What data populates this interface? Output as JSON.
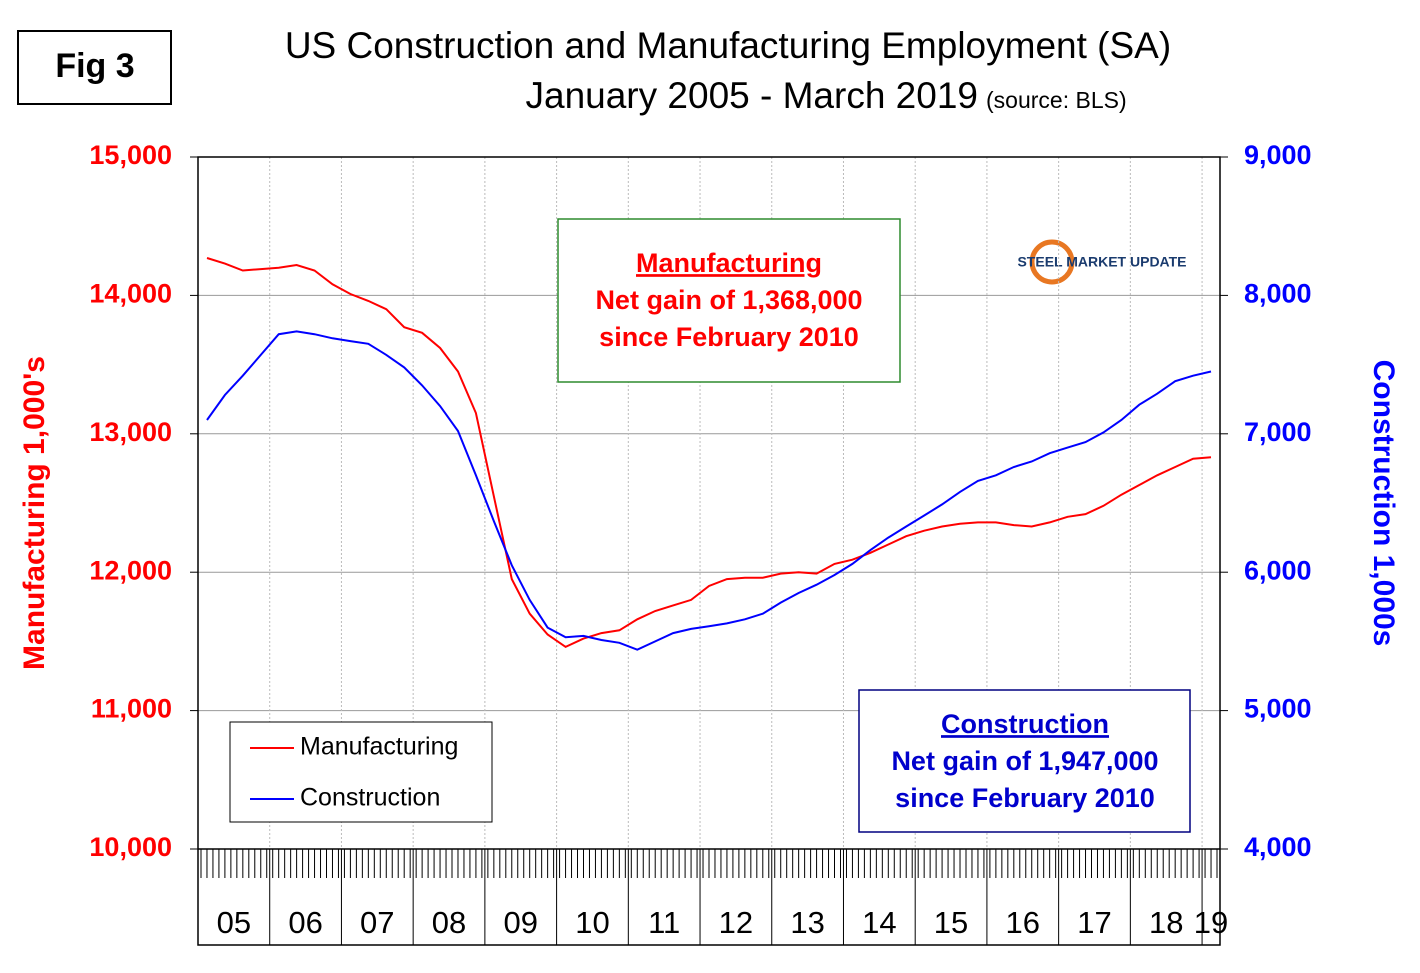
{
  "fig_label": "Fig 3",
  "chart_data": {
    "type": "line",
    "title": "US Construction and Manufacturing Employment (SA)",
    "subtitle": "January 2005 - March 2019",
    "source": "(source: BLS)",
    "logo": "STEEL MARKET UPDATE",
    "y_label": "Manufacturing  1,000's",
    "y2_label": "Construction 1,000s",
    "categories": [
      "05",
      null,
      null,
      null,
      "06",
      null,
      null,
      null,
      "07",
      null,
      null,
      null,
      "08",
      null,
      null,
      null,
      "09",
      null,
      null,
      null,
      "10",
      null,
      null,
      null,
      "11",
      null,
      null,
      null,
      "12",
      null,
      null,
      null,
      "13",
      null,
      null,
      null,
      "14",
      null,
      null,
      null,
      "15",
      null,
      null,
      null,
      "16",
      null,
      null,
      null,
      "17",
      null,
      null,
      null,
      "18",
      null,
      null,
      null,
      "19"
    ],
    "series": [
      {
        "name": "Manufacturing",
        "color": "#ff0000",
        "axis": "y",
        "values": [
          14270,
          14230,
          14180,
          14190,
          14200,
          14220,
          14180,
          14080,
          14010,
          13960,
          13900,
          13770,
          13730,
          13620,
          13450,
          13150,
          12550,
          11950,
          11700,
          11550,
          11460,
          11520,
          11560,
          11580,
          11660,
          11720,
          11760,
          11800,
          11900,
          11950,
          11960,
          11960,
          11990,
          12000,
          11990,
          12060,
          12090,
          12140,
          12200,
          12260,
          12300,
          12330,
          12350,
          12360,
          12360,
          12340,
          12330,
          12360,
          12400,
          12420,
          12480,
          12560,
          12630,
          12700,
          12760,
          12820,
          12830
        ]
      },
      {
        "name": "Construction",
        "color": "#0000ff",
        "axis": "y2",
        "values": [
          7100,
          7280,
          7420,
          7570,
          7720,
          7740,
          7720,
          7690,
          7670,
          7650,
          7570,
          7480,
          7350,
          7200,
          7020,
          6700,
          6370,
          6050,
          5800,
          5600,
          5530,
          5540,
          5510,
          5490,
          5440,
          5500,
          5560,
          5590,
          5610,
          5630,
          5660,
          5700,
          5780,
          5850,
          5910,
          5980,
          6060,
          6160,
          6250,
          6330,
          6410,
          6490,
          6580,
          6660,
          6700,
          6760,
          6800,
          6860,
          6900,
          6940,
          7010,
          7100,
          7210,
          7290,
          7380,
          7420,
          7450
        ]
      }
    ],
    "ylim": [
      10000,
      15000
    ],
    "yticks": [
      {
        "value": 10000,
        "label": "10,000"
      },
      {
        "value": 11000,
        "label": "11,000"
      },
      {
        "value": 12000,
        "label": "12,000"
      },
      {
        "value": 13000,
        "label": "13,000"
      },
      {
        "value": 14000,
        "label": "14,000"
      },
      {
        "value": 15000,
        "label": "15,000"
      }
    ],
    "y2lim": [
      4000,
      9000
    ],
    "y2ticks": [
      {
        "value": 4000,
        "label": "4,000"
      },
      {
        "value": 5000,
        "label": "5,000"
      },
      {
        "value": 6000,
        "label": "6,000"
      },
      {
        "value": 7000,
        "label": "7,000"
      },
      {
        "value": 8000,
        "label": "8,000"
      },
      {
        "value": 9000,
        "label": "9,000"
      }
    ],
    "grid": true,
    "legend": "lower left",
    "annotations": [
      {
        "title": "Manufacturing",
        "lines": [
          "Net gain of 1,368,000",
          "since February 2010"
        ],
        "color": "#ff0000",
        "border": "#2e8b2e"
      },
      {
        "title": "Construction",
        "lines": [
          "Net gain of 1,947,000",
          "since February 2010"
        ],
        "color": "#0000cc",
        "border": "#000080"
      }
    ]
  }
}
